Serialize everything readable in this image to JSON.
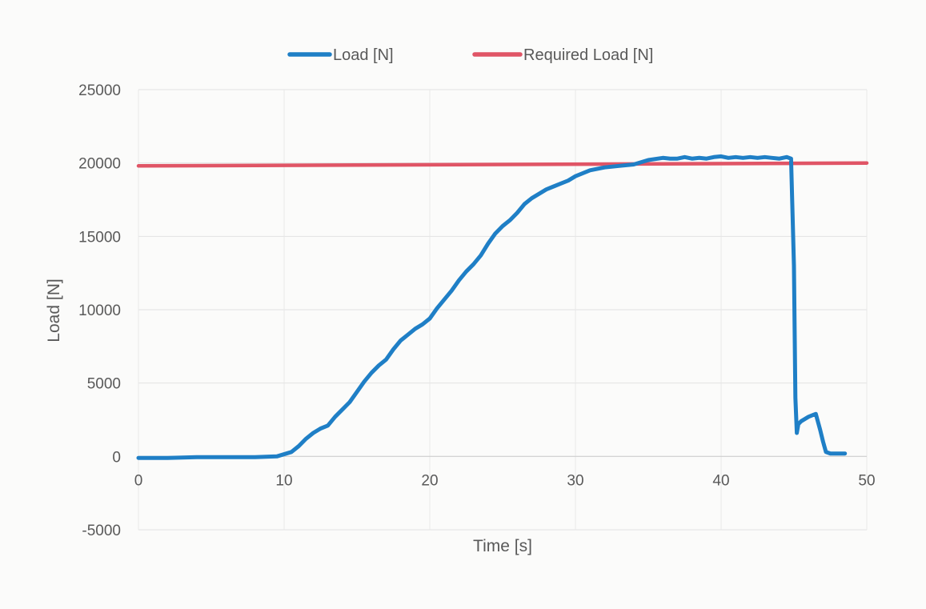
{
  "chart_data": {
    "type": "line",
    "title": "",
    "xlabel": "Time [s]",
    "ylabel": "Load [N]",
    "xlim": [
      0,
      50
    ],
    "ylim": [
      -5000,
      25000
    ],
    "xticks": [
      0,
      10,
      20,
      30,
      40,
      50
    ],
    "yticks": [
      -5000,
      0,
      5000,
      10000,
      15000,
      20000,
      25000
    ],
    "grid": true,
    "legend_position": "top",
    "series": [
      {
        "name": "Load [N]",
        "color": "#1f7fc6",
        "x": [
          0,
          2,
          4,
          6,
          8,
          9.5,
          10.5,
          11,
          11.5,
          12,
          12.5,
          13,
          13.5,
          14,
          14.5,
          15,
          15.5,
          16,
          16.5,
          17,
          17.5,
          18,
          18.5,
          19,
          19.5,
          20,
          20.5,
          21,
          21.5,
          22,
          22.5,
          23,
          23.5,
          24,
          24.5,
          25,
          25.5,
          26,
          26.5,
          27,
          27.5,
          28,
          28.5,
          29,
          29.5,
          30,
          31,
          32,
          33,
          34,
          35,
          36,
          36.5,
          37,
          37.5,
          38,
          38.5,
          39,
          39.5,
          40,
          40.5,
          41,
          41.5,
          42,
          42.5,
          43,
          43.5,
          44,
          44.5,
          44.8,
          45.0,
          45.1,
          45.2,
          45.3,
          45.5,
          46,
          46.5,
          46.8,
          47,
          47.2,
          47.5,
          48,
          48.5
        ],
        "y": [
          -100,
          -100,
          -50,
          -50,
          -50,
          0,
          300,
          700,
          1200,
          1600,
          1900,
          2100,
          2700,
          3200,
          3700,
          4400,
          5100,
          5700,
          6200,
          6600,
          7300,
          7900,
          8300,
          8700,
          9000,
          9400,
          10100,
          10700,
          11300,
          12000,
          12600,
          13100,
          13700,
          14500,
          15200,
          15700,
          16100,
          16600,
          17200,
          17600,
          17900,
          18200,
          18400,
          18600,
          18800,
          19100,
          19500,
          19700,
          19800,
          19900,
          20200,
          20350,
          20300,
          20300,
          20400,
          20300,
          20350,
          20300,
          20400,
          20450,
          20350,
          20400,
          20350,
          20400,
          20350,
          20400,
          20350,
          20300,
          20400,
          20300,
          13000,
          4000,
          1600,
          2200,
          2400,
          2700,
          2900,
          1800,
          1000,
          300,
          200,
          200,
          200
        ]
      },
      {
        "name": "Required Load [N]",
        "color": "#e05566",
        "x": [
          0,
          50
        ],
        "y": [
          19800,
          20000
        ]
      }
    ]
  }
}
